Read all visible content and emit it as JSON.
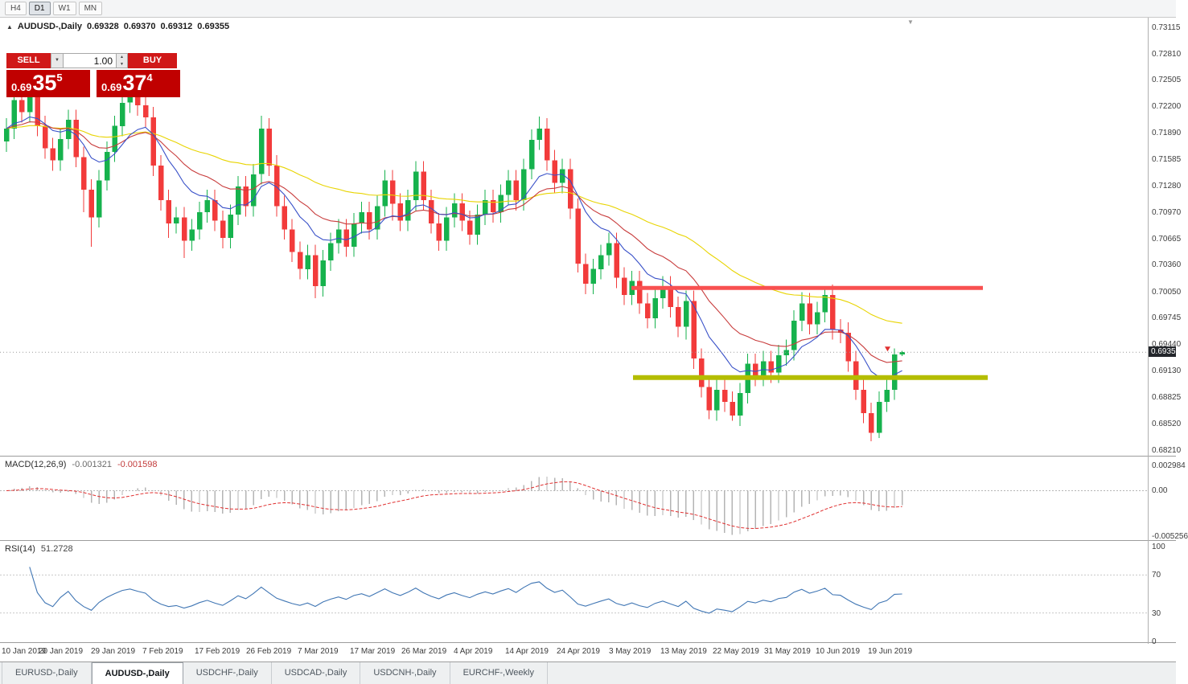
{
  "toolbar": {
    "periods": [
      "H4",
      "D1",
      "W1",
      "MN"
    ],
    "active_period": "D1"
  },
  "header": {
    "symbol": "AUDUSD-,Daily"
  },
  "icons": {
    "header_arrow": "▲",
    "dropdown": "▼",
    "spinner_up": "▲",
    "spinner_down": "▼",
    "chart_shift": "▼"
  },
  "trade_panel": {
    "sell_label": "SELL",
    "buy_label": "BUY",
    "vol_label": "1.00",
    "sell_price": {
      "prefix": "0.69",
      "big": "35",
      "sup": "5"
    },
    "buy_price": {
      "prefix": "0.69",
      "big": "37",
      "sup": "4"
    }
  },
  "price_axis": {
    "labels": [
      "0.73115",
      "0.72810",
      "0.72505",
      "0.72200",
      "0.71890",
      "0.71585",
      "0.71280",
      "0.70970",
      "0.70665",
      "0.70360",
      "0.70050",
      "0.69745",
      "0.69440",
      "0.69130",
      "0.68825",
      "0.68520",
      "0.68210"
    ],
    "current": "0.69355"
  },
  "x_axis": {
    "labels": [
      "10 Jan 2019",
      "20 Jan 2019",
      "29 Jan 2019",
      "7 Feb 2019",
      "17 Feb 2019",
      "26 Feb 2019",
      "7 Mar 2019",
      "17 Mar 2019",
      "26 Mar 2019",
      "4 Apr 2019",
      "14 Apr 2019",
      "24 Apr 2019",
      "3 May 2019",
      "13 May 2019",
      "22 May 2019",
      "31 May 2019",
      "10 Jun 2019",
      "19 Jun 2019"
    ]
  },
  "tabs": [
    {
      "label": "EURUSD-,Daily",
      "active": false
    },
    {
      "label": "AUDUSD-,Daily",
      "active": true
    },
    {
      "label": "USDCHF-,Daily",
      "active": false
    },
    {
      "label": "USDCAD-,Daily",
      "active": false
    },
    {
      "label": "USDCNH-,Daily",
      "active": false
    },
    {
      "label": "EURCHF-,Weekly",
      "active": false
    }
  ],
  "chart_data": {
    "type": "candlestick",
    "symbol": "AUDUSD",
    "timeframe": "Daily",
    "ohlc_display": {
      "open": "0.69328",
      "high": "0.69370",
      "low": "0.69312",
      "close": "0.69355"
    },
    "colors": {
      "bull": "#16b24d",
      "bear": "#f23b3b"
    },
    "candles": [
      [
        0.718,
        0.7207,
        0.7168,
        0.7195
      ],
      [
        0.7195,
        0.724,
        0.7183,
        0.7228
      ],
      [
        0.7228,
        0.724,
        0.7202,
        0.7214
      ],
      [
        0.7214,
        0.7244,
        0.7202,
        0.7232
      ],
      [
        0.7232,
        0.7244,
        0.7186,
        0.7198
      ],
      [
        0.7198,
        0.721,
        0.716,
        0.7172
      ],
      [
        0.7172,
        0.7184,
        0.7146,
        0.7158
      ],
      [
        0.7158,
        0.7195,
        0.7146,
        0.7183
      ],
      [
        0.7183,
        0.7217,
        0.7171,
        0.7205
      ],
      [
        0.7205,
        0.7217,
        0.715,
        0.7162
      ],
      [
        0.7162,
        0.7174,
        0.7098,
        0.7124
      ],
      [
        0.7124,
        0.7136,
        0.7058,
        0.7092
      ],
      [
        0.7092,
        0.7147,
        0.708,
        0.7135
      ],
      [
        0.7135,
        0.718,
        0.7123,
        0.7168
      ],
      [
        0.7168,
        0.721,
        0.7156,
        0.7198
      ],
      [
        0.7198,
        0.7237,
        0.7186,
        0.7225
      ],
      [
        0.7225,
        0.7252,
        0.7213,
        0.7238
      ],
      [
        0.7238,
        0.725,
        0.721,
        0.7222
      ],
      [
        0.7222,
        0.7234,
        0.7196,
        0.7208
      ],
      [
        0.7208,
        0.722,
        0.714,
        0.7152
      ],
      [
        0.7152,
        0.7164,
        0.71,
        0.7112
      ],
      [
        0.7112,
        0.7124,
        0.7068,
        0.7085
      ],
      [
        0.7085,
        0.7104,
        0.7073,
        0.7092
      ],
      [
        0.7092,
        0.7104,
        0.7045,
        0.7065
      ],
      [
        0.7065,
        0.709,
        0.7053,
        0.7078
      ],
      [
        0.7078,
        0.711,
        0.7066,
        0.7098
      ],
      [
        0.7098,
        0.7124,
        0.7086,
        0.7112
      ],
      [
        0.7112,
        0.7124,
        0.7076,
        0.7088
      ],
      [
        0.7088,
        0.71,
        0.7056,
        0.7068
      ],
      [
        0.7068,
        0.7107,
        0.7056,
        0.7095
      ],
      [
        0.7095,
        0.714,
        0.7083,
        0.7128
      ],
      [
        0.7128,
        0.714,
        0.7093,
        0.7105
      ],
      [
        0.7105,
        0.7154,
        0.7093,
        0.7142
      ],
      [
        0.7142,
        0.721,
        0.713,
        0.7195
      ],
      [
        0.7195,
        0.7207,
        0.714,
        0.7152
      ],
      [
        0.7152,
        0.7164,
        0.7093,
        0.7105
      ],
      [
        0.7105,
        0.7117,
        0.7066,
        0.7078
      ],
      [
        0.7078,
        0.709,
        0.704,
        0.7052
      ],
      [
        0.7052,
        0.7064,
        0.702,
        0.7032
      ],
      [
        0.7032,
        0.706,
        0.702,
        0.7048
      ],
      [
        0.7048,
        0.706,
        0.6998,
        0.7012
      ],
      [
        0.7012,
        0.7054,
        0.7,
        0.7042
      ],
      [
        0.7042,
        0.7074,
        0.703,
        0.7062
      ],
      [
        0.7062,
        0.709,
        0.705,
        0.7078
      ],
      [
        0.7078,
        0.709,
        0.7046,
        0.7058
      ],
      [
        0.7058,
        0.7097,
        0.7046,
        0.7085
      ],
      [
        0.7085,
        0.711,
        0.7073,
        0.7098
      ],
      [
        0.7098,
        0.711,
        0.7066,
        0.7078
      ],
      [
        0.7078,
        0.7117,
        0.7066,
        0.7105
      ],
      [
        0.7105,
        0.7147,
        0.7093,
        0.7135
      ],
      [
        0.7135,
        0.7147,
        0.7088,
        0.7108
      ],
      [
        0.7108,
        0.712,
        0.7076,
        0.7088
      ],
      [
        0.7088,
        0.7124,
        0.7076,
        0.7112
      ],
      [
        0.7112,
        0.7157,
        0.71,
        0.7145
      ],
      [
        0.7145,
        0.7157,
        0.71,
        0.7112
      ],
      [
        0.7112,
        0.7124,
        0.7073,
        0.7085
      ],
      [
        0.7085,
        0.7097,
        0.7053,
        0.7065
      ],
      [
        0.7065,
        0.7104,
        0.7053,
        0.7092
      ],
      [
        0.7092,
        0.712,
        0.708,
        0.7108
      ],
      [
        0.7108,
        0.712,
        0.7076,
        0.7088
      ],
      [
        0.7088,
        0.71,
        0.706,
        0.7072
      ],
      [
        0.7072,
        0.7107,
        0.706,
        0.7095
      ],
      [
        0.7095,
        0.7124,
        0.7083,
        0.7112
      ],
      [
        0.7112,
        0.7124,
        0.7086,
        0.7098
      ],
      [
        0.7098,
        0.713,
        0.7086,
        0.7118
      ],
      [
        0.7118,
        0.7147,
        0.7106,
        0.7135
      ],
      [
        0.7135,
        0.7147,
        0.71,
        0.7112
      ],
      [
        0.7112,
        0.716,
        0.71,
        0.7148
      ],
      [
        0.7148,
        0.7194,
        0.7136,
        0.7182
      ],
      [
        0.7182,
        0.7209,
        0.717,
        0.7195
      ],
      [
        0.7195,
        0.7207,
        0.7146,
        0.7158
      ],
      [
        0.7158,
        0.717,
        0.712,
        0.7132
      ],
      [
        0.7132,
        0.716,
        0.712,
        0.7148
      ],
      [
        0.7148,
        0.716,
        0.709,
        0.7102
      ],
      [
        0.7102,
        0.7114,
        0.7028,
        0.7038
      ],
      [
        0.7038,
        0.705,
        0.7003,
        0.7015
      ],
      [
        0.7015,
        0.7044,
        0.7003,
        0.7032
      ],
      [
        0.7032,
        0.706,
        0.702,
        0.7048
      ],
      [
        0.7048,
        0.7074,
        0.7036,
        0.7062
      ],
      [
        0.7062,
        0.7074,
        0.701,
        0.7022
      ],
      [
        0.7022,
        0.7034,
        0.699,
        0.7002
      ],
      [
        0.7002,
        0.703,
        0.699,
        0.7018
      ],
      [
        0.7018,
        0.703,
        0.698,
        0.6992
      ],
      [
        0.6992,
        0.7004,
        0.6963,
        0.6975
      ],
      [
        0.6975,
        0.701,
        0.6963,
        0.6998
      ],
      [
        0.6998,
        0.7024,
        0.6986,
        0.7012
      ],
      [
        0.7012,
        0.7024,
        0.6976,
        0.6988
      ],
      [
        0.6988,
        0.7,
        0.6953,
        0.6965
      ],
      [
        0.6965,
        0.7007,
        0.695,
        0.6995
      ],
      [
        0.6995,
        0.7007,
        0.6916,
        0.6928
      ],
      [
        0.6928,
        0.694,
        0.6883,
        0.6895
      ],
      [
        0.6895,
        0.6907,
        0.6858,
        0.6868
      ],
      [
        0.6868,
        0.6904,
        0.6856,
        0.6892
      ],
      [
        0.6892,
        0.6904,
        0.6866,
        0.6878
      ],
      [
        0.6878,
        0.689,
        0.6856,
        0.6862
      ],
      [
        0.6862,
        0.69,
        0.685,
        0.6888
      ],
      [
        0.6888,
        0.6934,
        0.6876,
        0.6922
      ],
      [
        0.6922,
        0.6934,
        0.6896,
        0.6908
      ],
      [
        0.6908,
        0.6937,
        0.6896,
        0.6925
      ],
      [
        0.6925,
        0.6937,
        0.69,
        0.6912
      ],
      [
        0.6912,
        0.6944,
        0.69,
        0.6932
      ],
      [
        0.6932,
        0.695,
        0.692,
        0.6938
      ],
      [
        0.6938,
        0.6984,
        0.6926,
        0.6972
      ],
      [
        0.6972,
        0.7005,
        0.696,
        0.6992
      ],
      [
        0.6992,
        0.7004,
        0.6956,
        0.6968
      ],
      [
        0.6968,
        0.6994,
        0.6956,
        0.6982
      ],
      [
        0.6982,
        0.7012,
        0.697,
        0.7002
      ],
      [
        0.7002,
        0.7014,
        0.695,
        0.6962
      ],
      [
        0.6962,
        0.6974,
        0.6946,
        0.6958
      ],
      [
        0.6958,
        0.697,
        0.6913,
        0.6925
      ],
      [
        0.6925,
        0.6937,
        0.688,
        0.6892
      ],
      [
        0.6892,
        0.6904,
        0.6853,
        0.6865
      ],
      [
        0.6865,
        0.6877,
        0.6832,
        0.6842
      ],
      [
        0.6842,
        0.689,
        0.6836,
        0.6878
      ],
      [
        0.6878,
        0.6904,
        0.6866,
        0.6892
      ],
      [
        0.6892,
        0.694,
        0.688,
        0.6933
      ],
      [
        0.69328,
        0.6937,
        0.69312,
        0.69355
      ]
    ],
    "overlays": {
      "resistance_line": {
        "color": "#f85050",
        "price": 0.701
      },
      "support_line": {
        "color": "#b4bd00",
        "price": 0.6906
      },
      "current_price": 0.69355,
      "marker_color": "#e03030",
      "moving_averages": [
        {
          "name": "slow-ma",
          "period": 50,
          "color": "#e8d400"
        },
        {
          "name": "medium-ma",
          "period": 20,
          "color": "#c83c3c"
        },
        {
          "name": "fast-ma",
          "period": 10,
          "color": "#3850c8"
        }
      ]
    },
    "indicators": {
      "macd": {
        "label": "MACD(12,26,9)",
        "main_value": "-0.001321",
        "signal_value": "-0.001598",
        "axis": [
          "0.002984",
          "0.00",
          "-0.005256"
        ]
      },
      "rsi": {
        "label": "RSI(14)",
        "value": "51.2728",
        "axis": [
          "100",
          "70",
          "30",
          "0"
        ]
      }
    }
  }
}
